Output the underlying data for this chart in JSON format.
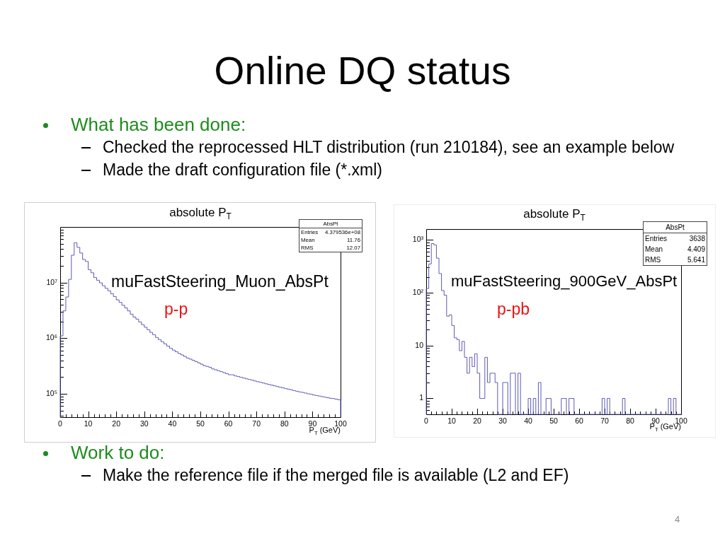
{
  "chart_data": [
    {
      "type": "other",
      "title": "Online DQ status",
      "annotations": [
        "What has been done:",
        "Checked the reprocessed HLT distribution (run 210184), see an example below",
        "Made the draft configuration file (*.xml)"
      ]
    },
    {
      "type": "histogram",
      "title": "absolute P$_{T}$",
      "xlabel": "P$_{T}$ (GeV)",
      "color": "#5a5ab4",
      "log": true,
      "bins": [
        0,
        1,
        2,
        3,
        4,
        5,
        6,
        7,
        8,
        9,
        10,
        11,
        12,
        13,
        14,
        15,
        16,
        17,
        18,
        19,
        20,
        21,
        22,
        23,
        24,
        25,
        26,
        27,
        28,
        29,
        30,
        31,
        32,
        33,
        34,
        35,
        36,
        37,
        38,
        39,
        40,
        41,
        42,
        43,
        44,
        45,
        46,
        47,
        48,
        49,
        50,
        51,
        52,
        53,
        54,
        55,
        56,
        57,
        58,
        59,
        60,
        61,
        62,
        63,
        64,
        65,
        66,
        67,
        68,
        69,
        70,
        71,
        72,
        73,
        74,
        75,
        76,
        77,
        78,
        79,
        80,
        81,
        82,
        83,
        84,
        85,
        86,
        87,
        88,
        89,
        90,
        91,
        92,
        93,
        94,
        95,
        96,
        97,
        98,
        99,
        100
      ],
      "values": [
        1100000,
        3100000,
        5500000,
        11400000,
        31000000,
        52000000,
        43000000,
        34000000,
        26000000,
        24000000,
        17000000,
        15000000,
        12300000,
        11000000,
        9900000,
        8800000,
        7900000,
        7100000,
        6300000,
        5600000,
        4900000,
        4400000,
        3900000,
        3500000,
        3100000,
        2700000,
        2400000,
        2200000,
        1960000,
        1750000,
        1570000,
        1420000,
        1270000,
        1150000,
        1030000,
        940000,
        860000,
        790000,
        720000,
        660000,
        610000,
        570000,
        530000,
        500000,
        470000,
        440000,
        420000,
        400000,
        380000,
        360000,
        340000,
        320000,
        310000,
        300000,
        280000,
        270000,
        260000,
        250000,
        240000,
        230000,
        220000,
        220000,
        210000,
        205000,
        198000,
        192000,
        186000,
        181000,
        176000,
        170000,
        165000,
        161000,
        156000,
        151000,
        147000,
        143000,
        139000,
        135000,
        131000,
        128000,
        124000,
        121000,
        118000,
        114000,
        111000,
        108000,
        106000,
        103000,
        100000,
        98000,
        95000,
        93000,
        91000,
        89000,
        87000,
        85000,
        83000,
        82000,
        80000,
        78000
      ],
      "xlim": [
        0,
        100
      ],
      "xticks": [
        0,
        {
          "value": 2,
          "label": null
        },
        {
          "value": 4,
          "label": null
        },
        {
          "value": 6,
          "label": null
        },
        {
          "value": 8,
          "label": null
        },
        10,
        {
          "value": 12,
          "label": null
        },
        {
          "value": 14,
          "label": null
        },
        {
          "value": 16,
          "label": null
        },
        {
          "value": 18,
          "label": null
        },
        20,
        {
          "value": 22,
          "label": null
        },
        {
          "value": 24,
          "label": null
        },
        {
          "value": 26,
          "label": null
        },
        {
          "value": 28,
          "label": null
        },
        30,
        {
          "value": 32,
          "label": null
        },
        {
          "value": 34,
          "label": null
        },
        {
          "value": 36,
          "label": null
        },
        {
          "value": 38,
          "label": null
        },
        40,
        {
          "value": 42,
          "label": null
        },
        {
          "value": 44,
          "label": null
        },
        {
          "value": 46,
          "label": null
        },
        {
          "value": 48,
          "label": null
        },
        50,
        {
          "value": 52,
          "label": null
        },
        {
          "value": 54,
          "label": null
        },
        {
          "value": 56,
          "label": null
        },
        {
          "value": 58,
          "label": null
        },
        60,
        {
          "value": 62,
          "label": null
        },
        {
          "value": 64,
          "label": null
        },
        {
          "value": 66,
          "label": null
        },
        {
          "value": 68,
          "label": null
        },
        70,
        {
          "value": 72,
          "label": null
        },
        {
          "value": 74,
          "label": null
        },
        {
          "value": 76,
          "label": null
        },
        {
          "value": 78,
          "label": null
        },
        80,
        {
          "value": 82,
          "label": null
        },
        {
          "value": 84,
          "label": null
        },
        {
          "value": 86,
          "label": null
        },
        {
          "value": 88,
          "label": null
        },
        90,
        {
          "value": 92,
          "label": null
        },
        {
          "value": 94,
          "label": null
        },
        {
          "value": 96,
          "label": null
        },
        {
          "value": 98,
          "label": null
        },
        100
      ],
      "ylim": [
        38000,
        100000000
      ],
      "yticks": [
        {
          "value": 40000,
          "label": null
        },
        {
          "value": 50000,
          "label": null
        },
        {
          "value": 60000,
          "label": null
        },
        {
          "value": 70000,
          "label": null
        },
        {
          "value": 80000,
          "label": null
        },
        {
          "value": 90000,
          "label": null
        },
        {
          "value": 100000,
          "label": "10⁵"
        },
        {
          "value": 200000,
          "label": null
        },
        {
          "value": 300000,
          "label": null
        },
        {
          "value": 400000,
          "label": null
        },
        {
          "value": 500000,
          "label": null
        },
        {
          "value": 600000,
          "label": null
        },
        {
          "value": 700000,
          "label": null
        },
        {
          "value": 800000,
          "label": null
        },
        {
          "value": 900000,
          "label": null
        },
        {
          "value": 1000000,
          "label": "10⁶"
        },
        {
          "value": 2000000,
          "label": null
        },
        {
          "value": 3000000,
          "label": null
        },
        {
          "value": 4000000,
          "label": null
        },
        {
          "value": 5000000,
          "label": null
        },
        {
          "value": 6000000,
          "label": null
        },
        {
          "value": 7000000,
          "label": null
        },
        {
          "value": 8000000,
          "label": null
        },
        {
          "value": 9000000,
          "label": null
        },
        {
          "value": 10000000,
          "label": "10⁷"
        },
        {
          "value": 20000000,
          "label": null
        },
        {
          "value": 30000000,
          "label": null
        },
        {
          "value": 40000000,
          "label": null
        },
        {
          "value": 50000000,
          "label": null
        },
        {
          "value": 60000000,
          "label": null
        },
        {
          "value": 70000000,
          "label": null
        },
        {
          "value": 80000000,
          "label": null
        },
        {
          "value": 90000000,
          "label": null
        }
      ],
      "annotations": [
        "AbsPt",
        "Entries",
        "4.379536e+08",
        "Mean",
        "11.76",
        "RMS",
        "12.07",
        "muFastSteering_Muon_AbsPt",
        "p-p"
      ]
    },
    {
      "type": "histogram",
      "title": "absolute P$_{T}$",
      "xlabel": "P$_{T}$ (GeV)",
      "color": "#5a5ab4",
      "log": true,
      "bins": [
        0,
        1,
        2,
        3,
        4,
        5,
        6,
        7,
        8,
        9,
        10,
        11,
        12,
        13,
        14,
        15,
        16,
        17,
        18,
        19,
        20,
        21,
        22,
        23,
        24,
        25,
        26,
        27,
        28,
        29,
        30,
        31,
        32,
        33,
        34,
        35,
        36,
        37,
        38,
        39,
        40,
        41,
        42,
        43,
        44,
        45,
        46,
        47,
        48,
        49,
        50,
        51,
        52,
        53,
        54,
        55,
        56,
        57,
        58,
        59,
        60,
        61,
        62,
        63,
        64,
        65,
        66,
        67,
        68,
        69,
        70,
        71,
        72,
        73,
        74,
        75,
        76,
        77,
        78,
        79,
        80,
        81,
        82,
        83,
        84,
        85,
        86,
        87,
        88,
        89,
        90,
        91,
        92,
        93,
        94,
        95,
        96,
        97,
        98,
        99,
        100
      ],
      "values": [
        120,
        350,
        850,
        800,
        450,
        230,
        110,
        90,
        36,
        38,
        24,
        14,
        13,
        8,
        12,
        6,
        3,
        6,
        4,
        7,
        3,
        1,
        1,
        6,
        2,
        3,
        3,
        2,
        null,
        null,
        2,
        2,
        null,
        3,
        3,
        null,
        3,
        null,
        null,
        null,
        1,
        null,
        1,
        null,
        2,
        null,
        null,
        1,
        1,
        null,
        null,
        null,
        null,
        1,
        1,
        null,
        1,
        1,
        null,
        null,
        null,
        null,
        null,
        null,
        null,
        null,
        null,
        null,
        null,
        1,
        null,
        1,
        null,
        null,
        null,
        null,
        null,
        1,
        null,
        null,
        null,
        null,
        null,
        null,
        null,
        null,
        null,
        null,
        null,
        null,
        null,
        null,
        null,
        null,
        null,
        1,
        null,
        1,
        null,
        null
      ],
      "xlim": [
        0,
        100
      ],
      "xticks": [
        0,
        {
          "value": 2,
          "label": null
        },
        {
          "value": 4,
          "label": null
        },
        {
          "value": 6,
          "label": null
        },
        {
          "value": 8,
          "label": null
        },
        10,
        {
          "value": 12,
          "label": null
        },
        {
          "value": 14,
          "label": null
        },
        {
          "value": 16,
          "label": null
        },
        {
          "value": 18,
          "label": null
        },
        20,
        {
          "value": 22,
          "label": null
        },
        {
          "value": 24,
          "label": null
        },
        {
          "value": 26,
          "label": null
        },
        {
          "value": 28,
          "label": null
        },
        30,
        {
          "value": 32,
          "label": null
        },
        {
          "value": 34,
          "label": null
        },
        {
          "value": 36,
          "label": null
        },
        {
          "value": 38,
          "label": null
        },
        40,
        {
          "value": 42,
          "label": null
        },
        {
          "value": 44,
          "label": null
        },
        {
          "value": 46,
          "label": null
        },
        {
          "value": 48,
          "label": null
        },
        50,
        {
          "value": 52,
          "label": null
        },
        {
          "value": 54,
          "label": null
        },
        {
          "value": 56,
          "label": null
        },
        {
          "value": 58,
          "label": null
        },
        60,
        {
          "value": 62,
          "label": null
        },
        {
          "value": 64,
          "label": null
        },
        {
          "value": 66,
          "label": null
        },
        {
          "value": 68,
          "label": null
        },
        70,
        {
          "value": 72,
          "label": null
        },
        {
          "value": 74,
          "label": null
        },
        {
          "value": 76,
          "label": null
        },
        {
          "value": 78,
          "label": null
        },
        80,
        {
          "value": 82,
          "label": null
        },
        {
          "value": 84,
          "label": null
        },
        {
          "value": 86,
          "label": null
        },
        {
          "value": 88,
          "label": null
        },
        90,
        {
          "value": 92,
          "label": null
        },
        {
          "value": 94,
          "label": null
        },
        {
          "value": 96,
          "label": null
        },
        {
          "value": 98,
          "label": null
        },
        100
      ],
      "ylim": [
        0.5,
        1600
      ],
      "yticks": [
        {
          "value": 0.6,
          "label": null
        },
        {
          "value": 0.7,
          "label": null
        },
        {
          "value": 0.8,
          "label": null
        },
        {
          "value": 0.9,
          "label": null
        },
        1,
        {
          "value": 2,
          "label": null
        },
        {
          "value": 3,
          "label": null
        },
        {
          "value": 4,
          "label": null
        },
        {
          "value": 5,
          "label": null
        },
        {
          "value": 6,
          "label": null
        },
        {
          "value": 7,
          "label": null
        },
        {
          "value": 8,
          "label": null
        },
        {
          "value": 9,
          "label": null
        },
        10,
        {
          "value": 20,
          "label": null
        },
        {
          "value": 30,
          "label": null
        },
        {
          "value": 40,
          "label": null
        },
        {
          "value": 50,
          "label": null
        },
        {
          "value": 60,
          "label": null
        },
        {
          "value": 70,
          "label": null
        },
        {
          "value": 80,
          "label": null
        },
        {
          "value": 90,
          "label": null
        },
        {
          "value": 100,
          "label": "10²"
        },
        {
          "value": 200,
          "label": null
        },
        {
          "value": 300,
          "label": null
        },
        {
          "value": 400,
          "label": null
        },
        {
          "value": 500,
          "label": null
        },
        {
          "value": 600,
          "label": null
        },
        {
          "value": 700,
          "label": null
        },
        {
          "value": 800,
          "label": null
        },
        {
          "value": 900,
          "label": null
        },
        {
          "value": 1000,
          "label": "10³"
        }
      ],
      "annotations": [
        "AbsPt",
        "Entries",
        "3638",
        "Mean",
        "4.409",
        "RMS",
        "5.641",
        "muFastSteering_900GeV_AbsPt",
        "p-pb"
      ]
    },
    {
      "type": "other",
      "annotations": [
        "Work to do:",
        "Make the reference file if the merged file is available (L2 and EF)",
        "4"
      ]
    }
  ]
}
